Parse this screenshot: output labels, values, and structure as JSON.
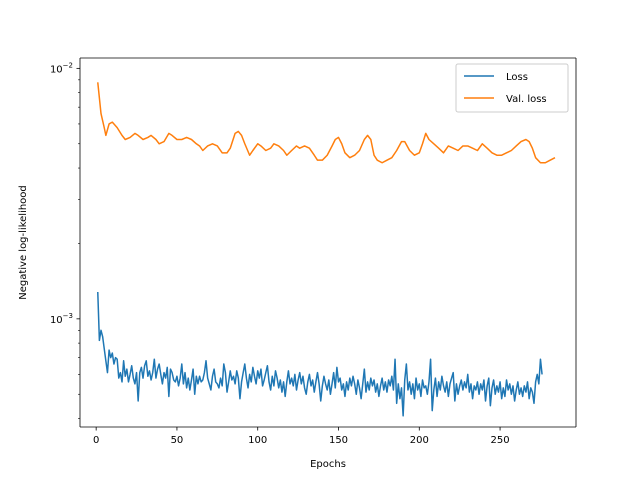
{
  "chart_data": {
    "type": "line",
    "xlabel": "Epochs",
    "ylabel": "Negative log-likelihood",
    "yscale": "log",
    "xlim": [
      -10,
      297
    ],
    "ylim": [
      0.00037,
      0.011
    ],
    "grid": false,
    "legend_placement": "top-right",
    "x_ticks": [
      0,
      50,
      100,
      150,
      200,
      250
    ],
    "x_tick_labels": [
      "0",
      "50",
      "100",
      "150",
      "200",
      "250"
    ],
    "y_ticks": [
      0.001,
      0.01
    ],
    "y_tick_labels": [
      {
        "base": "10",
        "exp": "−3"
      },
      {
        "base": "10",
        "exp": "−2"
      }
    ],
    "series": [
      {
        "name": "Loss",
        "color": "#1f77b4",
        "x_start": 1,
        "x_step": 1,
        "values": [
          0.00128,
          0.00082,
          0.0009,
          0.00085,
          0.00076,
          0.00068,
          0.00061,
          0.00075,
          0.0007,
          0.00073,
          0.00066,
          0.0007,
          0.00069,
          0.00058,
          0.00061,
          0.00056,
          0.00068,
          0.00059,
          0.00063,
          0.00056,
          0.0006,
          0.00065,
          0.00058,
          0.00055,
          0.00061,
          0.00047,
          0.00061,
          0.00064,
          0.00058,
          0.00065,
          0.00068,
          0.00059,
          0.00062,
          0.00057,
          0.00061,
          0.00069,
          0.00058,
          0.00063,
          0.00066,
          0.0006,
          0.00055,
          0.00061,
          0.00058,
          0.00064,
          0.00049,
          0.00063,
          0.00061,
          0.00057,
          0.00056,
          0.00059,
          0.00054,
          0.00058,
          0.00066,
          0.00055,
          0.00061,
          0.00053,
          0.00058,
          0.00052,
          0.00057,
          0.00063,
          0.0005,
          0.00059,
          0.00055,
          0.00059,
          0.00056,
          0.00057,
          0.00061,
          0.00068,
          0.00058,
          0.00055,
          0.00052,
          0.00059,
          0.00063,
          0.00056,
          0.00055,
          0.00053,
          0.00058,
          0.00054,
          0.00066,
          0.00061,
          0.00051,
          0.00056,
          0.00062,
          0.00057,
          0.00059,
          0.00055,
          0.00062,
          0.00058,
          0.00048,
          0.00056,
          0.00061,
          0.00066,
          0.00058,
          0.00053,
          0.0006,
          0.00056,
          0.00064,
          0.00059,
          0.00055,
          0.00062,
          0.00058,
          0.00063,
          0.00054,
          0.00057,
          0.00061,
          0.00065,
          0.00056,
          0.00052,
          0.00059,
          0.00054,
          0.00062,
          0.00058,
          0.00053,
          0.00057,
          0.00051,
          0.00056,
          0.00049,
          0.00056,
          0.00062,
          0.00055,
          0.00058,
          0.00054,
          0.0006,
          0.00052,
          0.00057,
          0.00061,
          0.00055,
          0.00059,
          0.00053,
          0.0005,
          0.00056,
          0.0006,
          0.00054,
          0.00057,
          0.00051,
          0.00056,
          0.00061,
          0.00055,
          0.00047,
          0.00054,
          0.00059,
          0.00055,
          0.00052,
          0.00057,
          0.0005,
          0.00055,
          0.00061,
          0.00053,
          0.00064,
          0.00056,
          0.00058,
          0.00052,
          0.00055,
          0.00049,
          0.00056,
          0.00052,
          0.00058,
          0.00054,
          0.00059,
          0.00055,
          0.0005,
          0.00057,
          0.00053,
          0.00048,
          0.00055,
          0.00063,
          0.00051,
          0.00056,
          0.00052,
          0.00058,
          0.00054,
          0.00057,
          0.00051,
          0.00055,
          0.00049,
          0.00054,
          0.00058,
          0.00052,
          0.00056,
          0.00051,
          0.00057,
          0.00054,
          0.00059,
          0.00052,
          0.00069,
          0.00046,
          0.00055,
          0.00048,
          0.00053,
          0.00041,
          0.00057,
          0.00066,
          0.00052,
          0.00056,
          0.0005,
          0.00055,
          0.00048,
          0.00058,
          0.00052,
          0.00055,
          0.00049,
          0.00057,
          0.00053,
          0.00054,
          0.0005,
          0.00056,
          0.00069,
          0.00043,
          0.00052,
          0.00058,
          0.00049,
          0.00056,
          0.00052,
          0.00059,
          0.00054,
          0.00051,
          0.00056,
          0.00049,
          0.00055,
          0.00058,
          0.00061,
          0.00047,
          0.00055,
          0.0005,
          0.00054,
          0.00057,
          0.00052,
          0.00056,
          0.00053,
          0.0006,
          0.00051,
          0.00055,
          0.00048,
          0.00054,
          0.00052,
          0.00056,
          0.0005,
          0.00055,
          0.00052,
          0.00057,
          0.00047,
          0.00054,
          0.00058,
          0.00045,
          0.00053,
          0.00057,
          0.0005,
          0.00054,
          0.00051,
          0.00056,
          0.00048,
          0.00053,
          0.00049,
          0.00057,
          0.00052,
          0.00055,
          0.0005,
          0.00054,
          0.00047,
          0.00052,
          0.00056,
          0.0005,
          0.00053,
          0.00049,
          0.00054,
          0.00051,
          0.00056,
          0.00048,
          0.00053,
          0.00051,
          0.00046,
          0.00056,
          0.0006,
          0.00055,
          0.00069,
          0.0006
        ]
      },
      {
        "name": "Val. loss",
        "color": "#ff7f0e",
        "points": [
          [
            1,
            0.0088
          ],
          [
            3,
            0.0066
          ],
          [
            5,
            0.0058
          ],
          [
            6,
            0.0054
          ],
          [
            8,
            0.006
          ],
          [
            10,
            0.0061
          ],
          [
            13,
            0.0058
          ],
          [
            16,
            0.0054
          ],
          [
            18,
            0.0052
          ],
          [
            21,
            0.0053
          ],
          [
            24,
            0.0055
          ],
          [
            26,
            0.0054
          ],
          [
            29,
            0.0052
          ],
          [
            32,
            0.0053
          ],
          [
            34,
            0.0054
          ],
          [
            37,
            0.0052
          ],
          [
            39,
            0.005
          ],
          [
            42,
            0.0051
          ],
          [
            45,
            0.0055
          ],
          [
            47,
            0.0054
          ],
          [
            50,
            0.0052
          ],
          [
            53,
            0.0052
          ],
          [
            56,
            0.0053
          ],
          [
            59,
            0.0052
          ],
          [
            62,
            0.005
          ],
          [
            64,
            0.0049
          ],
          [
            66,
            0.0047
          ],
          [
            69,
            0.0049
          ],
          [
            72,
            0.005
          ],
          [
            75,
            0.0049
          ],
          [
            78,
            0.0046
          ],
          [
            81,
            0.0046
          ],
          [
            83,
            0.0048
          ],
          [
            86,
            0.0055
          ],
          [
            88,
            0.0056
          ],
          [
            90,
            0.0054
          ],
          [
            92,
            0.005
          ],
          [
            95,
            0.0045
          ],
          [
            97,
            0.0047
          ],
          [
            100,
            0.005
          ],
          [
            102,
            0.0049
          ],
          [
            105,
            0.0047
          ],
          [
            108,
            0.0048
          ],
          [
            110,
            0.005
          ],
          [
            113,
            0.0049
          ],
          [
            116,
            0.0047
          ],
          [
            118,
            0.0045
          ],
          [
            121,
            0.0047
          ],
          [
            124,
            0.0049
          ],
          [
            126,
            0.0048
          ],
          [
            129,
            0.0049
          ],
          [
            132,
            0.0048
          ],
          [
            135,
            0.0045
          ],
          [
            137,
            0.0043
          ],
          [
            140,
            0.0043
          ],
          [
            143,
            0.0045
          ],
          [
            146,
            0.0049
          ],
          [
            148,
            0.0052
          ],
          [
            150,
            0.0053
          ],
          [
            152,
            0.005
          ],
          [
            154,
            0.0046
          ],
          [
            157,
            0.0044
          ],
          [
            160,
            0.0045
          ],
          [
            163,
            0.0047
          ],
          [
            166,
            0.0052
          ],
          [
            168,
            0.0054
          ],
          [
            170,
            0.0052
          ],
          [
            172,
            0.0045
          ],
          [
            174,
            0.0043
          ],
          [
            177,
            0.0042
          ],
          [
            180,
            0.0043
          ],
          [
            183,
            0.0044
          ],
          [
            186,
            0.0047
          ],
          [
            189,
            0.0051
          ],
          [
            191,
            0.0051
          ],
          [
            194,
            0.0047
          ],
          [
            197,
            0.0045
          ],
          [
            200,
            0.0046
          ],
          [
            202,
            0.005
          ],
          [
            204,
            0.0055
          ],
          [
            206,
            0.0052
          ],
          [
            209,
            0.005
          ],
          [
            212,
            0.0048
          ],
          [
            215,
            0.0046
          ],
          [
            218,
            0.0049
          ],
          [
            221,
            0.0048
          ],
          [
            224,
            0.0047
          ],
          [
            227,
            0.0049
          ],
          [
            230,
            0.0049
          ],
          [
            233,
            0.0048
          ],
          [
            236,
            0.0047
          ],
          [
            239,
            0.005
          ],
          [
            242,
            0.0048
          ],
          [
            245,
            0.0046
          ],
          [
            248,
            0.0045
          ],
          [
            251,
            0.0045
          ],
          [
            254,
            0.0046
          ],
          [
            257,
            0.0047
          ],
          [
            260,
            0.0049
          ],
          [
            263,
            0.0051
          ],
          [
            266,
            0.0052
          ],
          [
            268,
            0.0051
          ],
          [
            270,
            0.0048
          ],
          [
            272,
            0.0044
          ],
          [
            275,
            0.0042
          ],
          [
            278,
            0.0042
          ],
          [
            281,
            0.0043
          ],
          [
            284,
            0.0044
          ]
        ]
      }
    ]
  }
}
